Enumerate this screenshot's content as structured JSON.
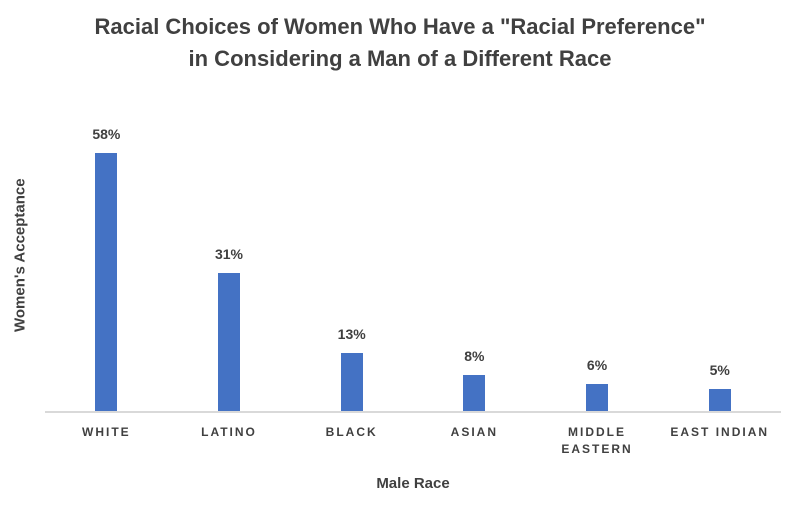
{
  "chart_data": {
    "type": "bar",
    "title": "Racial Choices of Women Who Have a \"Racial Preference\" in Considering a Man of a Different Race",
    "title_lines": [
      "Racial Choices of Women Who Have a \"Racial Preference\"",
      "in Considering a Man of a Different Race"
    ],
    "categories": [
      "WHITE",
      "LATINO",
      "BLACK",
      "ASIAN",
      "MIDDLE EASTERN",
      "EAST INDIAN"
    ],
    "values": [
      58,
      31,
      13,
      8,
      6,
      5
    ],
    "value_labels": [
      "58%",
      "31%",
      "13%",
      "8%",
      "6%",
      "5%"
    ],
    "xlabel": "Male Race",
    "ylabel": "Women's Acceptance",
    "ylim": [
      0,
      65
    ],
    "grid": false,
    "legend": false,
    "colors": {
      "bar": "#4472C4",
      "axis_line": "#D9D9D9",
      "text": "#404040",
      "background": "#FFFFFF"
    }
  }
}
